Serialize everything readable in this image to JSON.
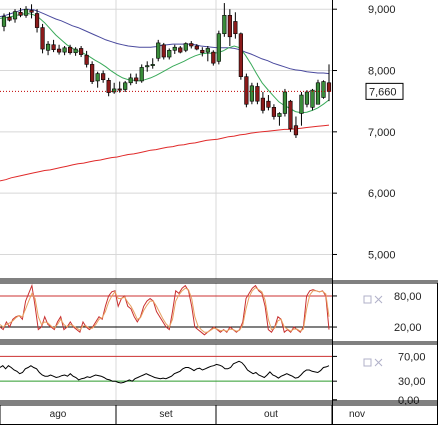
{
  "chart_data": [
    {
      "type": "candlestick",
      "panel": "price",
      "x_axis": {
        "months": [
          "ago",
          "set",
          "out",
          "nov"
        ]
      },
      "y_axis": {
        "ticks": [
          5000,
          6000,
          7000,
          8000,
          9000
        ],
        "tick_labels": [
          "5,000",
          "6,000",
          "7,000",
          "8,000",
          "9,000"
        ],
        "ylim": [
          4600,
          9150
        ]
      },
      "last_price_label": "7,660",
      "last_price": 7660,
      "grid": true,
      "candles": [
        {
          "o": 8720,
          "h": 8930,
          "l": 8640,
          "c": 8880
        },
        {
          "o": 8870,
          "h": 8950,
          "l": 8800,
          "c": 8820
        },
        {
          "o": 8840,
          "h": 9000,
          "l": 8780,
          "c": 8960
        },
        {
          "o": 8950,
          "h": 9020,
          "l": 8870,
          "c": 8900
        },
        {
          "o": 8900,
          "h": 9050,
          "l": 8860,
          "c": 9000
        },
        {
          "o": 8980,
          "h": 9080,
          "l": 8850,
          "c": 8950
        },
        {
          "o": 8930,
          "h": 9000,
          "l": 8620,
          "c": 8700
        },
        {
          "o": 8700,
          "h": 8760,
          "l": 8280,
          "c": 8350
        },
        {
          "o": 8330,
          "h": 8480,
          "l": 8250,
          "c": 8430
        },
        {
          "o": 8420,
          "h": 8500,
          "l": 8300,
          "c": 8340
        },
        {
          "o": 8350,
          "h": 8420,
          "l": 8260,
          "c": 8300
        },
        {
          "o": 8300,
          "h": 8400,
          "l": 8250,
          "c": 8370
        },
        {
          "o": 8380,
          "h": 8420,
          "l": 8260,
          "c": 8290
        },
        {
          "o": 8290,
          "h": 8380,
          "l": 8240,
          "c": 8350
        },
        {
          "o": 8360,
          "h": 8400,
          "l": 8220,
          "c": 8260
        },
        {
          "o": 8250,
          "h": 8320,
          "l": 8050,
          "c": 8100
        },
        {
          "o": 8100,
          "h": 8150,
          "l": 7780,
          "c": 7820
        },
        {
          "o": 7830,
          "h": 7980,
          "l": 7720,
          "c": 7950
        },
        {
          "o": 7950,
          "h": 8000,
          "l": 7800,
          "c": 7850
        },
        {
          "o": 7840,
          "h": 7880,
          "l": 7580,
          "c": 7640
        },
        {
          "o": 7650,
          "h": 7800,
          "l": 7620,
          "c": 7700
        },
        {
          "o": 7700,
          "h": 7820,
          "l": 7640,
          "c": 7680
        },
        {
          "o": 7690,
          "h": 7830,
          "l": 7650,
          "c": 7800
        },
        {
          "o": 7800,
          "h": 7950,
          "l": 7760,
          "c": 7880
        },
        {
          "o": 7880,
          "h": 7950,
          "l": 7780,
          "c": 7830
        },
        {
          "o": 7830,
          "h": 8100,
          "l": 7800,
          "c": 8050
        },
        {
          "o": 8060,
          "h": 8150,
          "l": 7980,
          "c": 8080
        },
        {
          "o": 8080,
          "h": 8200,
          "l": 8030,
          "c": 8100
        },
        {
          "o": 8200,
          "h": 8500,
          "l": 8150,
          "c": 8450
        },
        {
          "o": 8420,
          "h": 8450,
          "l": 8180,
          "c": 8220
        },
        {
          "o": 8220,
          "h": 8360,
          "l": 8180,
          "c": 8330
        },
        {
          "o": 8330,
          "h": 8420,
          "l": 8270,
          "c": 8380
        },
        {
          "o": 8370,
          "h": 8400,
          "l": 8280,
          "c": 8300
        },
        {
          "o": 8330,
          "h": 8460,
          "l": 8300,
          "c": 8440
        },
        {
          "o": 8440,
          "h": 8480,
          "l": 8360,
          "c": 8400
        },
        {
          "o": 8400,
          "h": 8430,
          "l": 8330,
          "c": 8350
        },
        {
          "o": 8330,
          "h": 8380,
          "l": 8230,
          "c": 8290
        },
        {
          "o": 8300,
          "h": 8400,
          "l": 8150,
          "c": 8360
        },
        {
          "o": 8300,
          "h": 8330,
          "l": 8080,
          "c": 8120
        },
        {
          "o": 8150,
          "h": 8650,
          "l": 8100,
          "c": 8600
        },
        {
          "o": 8600,
          "h": 9100,
          "l": 8550,
          "c": 8900
        },
        {
          "o": 8900,
          "h": 9000,
          "l": 8400,
          "c": 8550
        },
        {
          "o": 8800,
          "h": 8950,
          "l": 8520,
          "c": 8600
        },
        {
          "o": 8600,
          "h": 8620,
          "l": 7850,
          "c": 7900
        },
        {
          "o": 7900,
          "h": 7950,
          "l": 7400,
          "c": 7450
        },
        {
          "o": 7500,
          "h": 7800,
          "l": 7450,
          "c": 7750
        },
        {
          "o": 7740,
          "h": 7800,
          "l": 7450,
          "c": 7500
        },
        {
          "o": 7550,
          "h": 7650,
          "l": 7300,
          "c": 7350
        },
        {
          "o": 7500,
          "h": 7600,
          "l": 7350,
          "c": 7400
        },
        {
          "o": 7400,
          "h": 7450,
          "l": 7200,
          "c": 7250
        },
        {
          "o": 7250,
          "h": 7320,
          "l": 7100,
          "c": 7300
        },
        {
          "o": 7300,
          "h": 7700,
          "l": 7250,
          "c": 7650
        },
        {
          "o": 7500,
          "h": 7520,
          "l": 7000,
          "c": 7050
        },
        {
          "o": 7100,
          "h": 7250,
          "l": 6900,
          "c": 6950
        },
        {
          "o": 7300,
          "h": 7650,
          "l": 7100,
          "c": 7600
        },
        {
          "o": 7450,
          "h": 7680,
          "l": 7400,
          "c": 7650
        },
        {
          "o": 7400,
          "h": 7700,
          "l": 7350,
          "c": 7680
        },
        {
          "o": 7450,
          "h": 7850,
          "l": 7450,
          "c": 7800
        },
        {
          "o": 7560,
          "h": 7840,
          "l": 7540,
          "c": 7820
        },
        {
          "o": 7800,
          "h": 8100,
          "l": 7500,
          "c": 7660
        }
      ],
      "series": [
        {
          "style": "blue",
          "values": [
            8880,
            8900,
            8930,
            8960,
            8990,
            9000,
            8990,
            8960,
            8920,
            8880,
            8840,
            8810,
            8770,
            8730,
            8700,
            8660,
            8620,
            8580,
            8540,
            8500,
            8470,
            8440,
            8420,
            8400,
            8390,
            8380,
            8380,
            8380,
            8390,
            8410,
            8420,
            8430,
            8430,
            8430,
            8430,
            8420,
            8400,
            8390,
            8380,
            8370,
            8370,
            8370,
            8360,
            8340,
            8300,
            8270,
            8230,
            8190,
            8160,
            8120,
            8090,
            8060,
            8030,
            8010,
            8000,
            7980,
            7970,
            7960,
            7960,
            7950
          ]
        },
        {
          "style": "green",
          "values": [
            8850,
            8860,
            8880,
            8900,
            8920,
            8930,
            8910,
            8860,
            8780,
            8680,
            8580,
            8500,
            8420,
            8360,
            8320,
            8280,
            8230,
            8170,
            8120,
            8060,
            7990,
            7930,
            7880,
            7850,
            7840,
            7830,
            7850,
            7880,
            7920,
            7970,
            8020,
            8070,
            8110,
            8150,
            8200,
            8240,
            8270,
            8280,
            8280,
            8290,
            8320,
            8370,
            8400,
            8370,
            8250,
            8110,
            7950,
            7800,
            7690,
            7590,
            7490,
            7430,
            7380,
            7330,
            7310,
            7320,
            7350,
            7390,
            7450,
            7520
          ]
        },
        {
          "style": "red",
          "values": [
            6200,
            6220,
            6250,
            6270,
            6290,
            6310,
            6330,
            6350,
            6370,
            6380,
            6400,
            6420,
            6440,
            6460,
            6480,
            6490,
            6510,
            6530,
            6540,
            6560,
            6580,
            6590,
            6610,
            6630,
            6640,
            6660,
            6680,
            6700,
            6710,
            6730,
            6750,
            6760,
            6780,
            6790,
            6810,
            6820,
            6840,
            6860,
            6870,
            6880,
            6900,
            6920,
            6930,
            6950,
            6960,
            6980,
            6990,
            7000,
            7010,
            7020,
            7030,
            7040,
            7040,
            7050,
            7060,
            7070,
            7080,
            7090,
            7100,
            7110
          ]
        }
      ]
    },
    {
      "type": "line",
      "panel": "oscillator-1",
      "y_axis": {
        "tick_labels": [
          "80,00",
          "20,00"
        ],
        "ticks": [
          80,
          20
        ],
        "ylim": [
          -5,
          105
        ]
      },
      "reference_lines": [
        80,
        20
      ],
      "series": [
        {
          "style": "fast",
          "values": [
            20,
            15,
            30,
            20,
            35,
            40,
            42,
            35,
            70,
            85,
            100,
            60,
            15,
            20,
            40,
            25,
            20,
            15,
            30,
            40,
            15,
            20,
            30,
            20,
            15,
            10,
            30,
            20,
            15,
            20,
            30,
            40,
            35,
            60,
            80,
            88,
            90,
            60,
            75,
            80,
            60,
            55,
            40,
            30,
            40,
            60,
            70,
            75,
            70,
            50,
            40,
            30,
            20,
            15,
            50,
            90,
            85,
            95,
            100,
            90,
            60,
            20,
            15,
            10,
            5,
            10,
            15,
            20,
            15,
            10,
            15,
            10,
            20,
            15,
            10,
            15,
            30,
            75,
            85,
            95,
            100,
            90,
            85,
            60,
            15,
            10,
            20,
            40,
            35,
            10,
            15,
            10,
            20,
            15,
            10,
            20,
            80,
            90,
            92,
            90,
            88,
            90,
            80,
            15
          ]
        },
        {
          "style": "slow",
          "values": [
            25,
            20,
            25,
            28,
            32,
            38,
            42,
            40,
            55,
            70,
            85,
            75,
            40,
            25,
            30,
            28,
            22,
            18,
            25,
            35,
            25,
            20,
            25,
            22,
            18,
            14,
            22,
            22,
            18,
            18,
            25,
            35,
            38,
            50,
            68,
            80,
            88,
            75,
            75,
            78,
            68,
            60,
            48,
            35,
            38,
            52,
            62,
            70,
            70,
            60,
            48,
            36,
            26,
            20,
            35,
            70,
            82,
            90,
            95,
            92,
            75,
            40,
            22,
            15,
            10,
            10,
            14,
            18,
            16,
            13,
            14,
            12,
            16,
            15,
            12,
            14,
            24,
            55,
            78,
            90,
            96,
            92,
            88,
            72,
            35,
            15,
            18,
            32,
            35,
            20,
            16,
            12,
            16,
            16,
            12,
            16,
            55,
            82,
            90,
            90,
            88,
            89,
            84,
            40
          ]
        }
      ]
    },
    {
      "type": "line",
      "panel": "oscillator-2",
      "y_axis": {
        "tick_labels": [
          "70,00",
          "30,00",
          "0,00"
        ],
        "ticks": [
          70,
          30,
          0
        ],
        "ylim": [
          -2,
          90
        ]
      },
      "reference_lines": [
        70,
        30
      ],
      "series": [
        {
          "style": "black",
          "values": [
            52,
            55,
            50,
            55,
            52,
            48,
            46,
            42,
            44,
            50,
            52,
            55,
            52,
            50,
            44,
            40,
            38,
            38,
            40,
            38,
            36,
            37,
            39,
            40,
            38,
            42,
            38,
            36,
            32,
            34,
            35,
            37,
            36,
            38,
            40,
            39,
            38,
            36,
            33,
            32,
            30,
            30,
            28,
            27,
            28,
            30,
            32,
            30,
            34,
            36,
            38,
            40,
            42,
            40,
            38,
            36,
            35,
            34,
            35,
            34,
            36,
            38,
            42,
            44,
            46,
            50,
            52,
            52,
            50,
            47,
            50,
            51,
            48,
            50,
            52,
            54,
            55,
            57,
            56,
            54,
            50,
            50,
            52,
            58,
            60,
            62,
            60,
            55,
            48,
            45,
            42,
            44,
            40,
            38,
            36,
            40,
            45,
            40,
            38,
            35,
            38,
            40,
            42,
            40,
            38,
            35,
            36,
            40,
            45,
            48,
            48,
            46,
            45,
            44,
            47,
            52,
            53,
            55
          ]
        }
      ]
    }
  ],
  "time_axis": {
    "months": [
      "ago",
      "set",
      "out",
      "nov"
    ]
  }
}
